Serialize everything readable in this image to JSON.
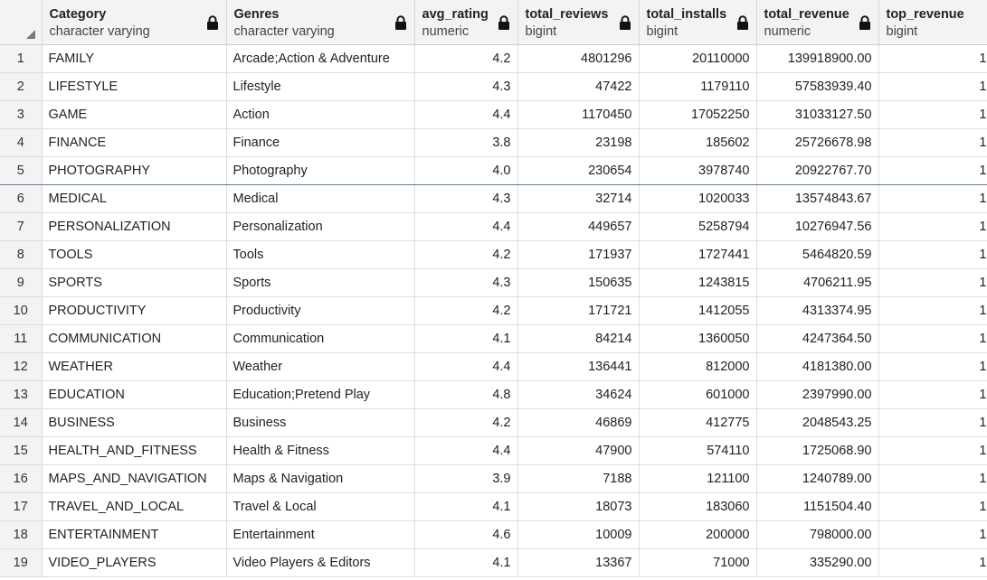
{
  "columns": [
    {
      "name": "Category",
      "type": "character varying"
    },
    {
      "name": "Genres",
      "type": "character varying"
    },
    {
      "name": "avg_rating",
      "type": "numeric"
    },
    {
      "name": "total_reviews",
      "type": "bigint"
    },
    {
      "name": "total_installs",
      "type": "bigint"
    },
    {
      "name": "total_revenue",
      "type": "numeric"
    },
    {
      "name": "top_revenue",
      "type": "bigint"
    }
  ],
  "selected_row": 5,
  "rows": [
    {
      "num": "1",
      "category": "FAMILY",
      "genres": "Arcade;Action & Adventure",
      "avg_rating": "4.2",
      "total_reviews": "4801296",
      "total_installs": "20110000",
      "total_revenue": "139918900.00",
      "top_revenue": "1"
    },
    {
      "num": "2",
      "category": "LIFESTYLE",
      "genres": "Lifestyle",
      "avg_rating": "4.3",
      "total_reviews": "47422",
      "total_installs": "1179110",
      "total_revenue": "57583939.40",
      "top_revenue": "1"
    },
    {
      "num": "3",
      "category": "GAME",
      "genres": "Action",
      "avg_rating": "4.4",
      "total_reviews": "1170450",
      "total_installs": "17052250",
      "total_revenue": "31033127.50",
      "top_revenue": "1"
    },
    {
      "num": "4",
      "category": "FINANCE",
      "genres": "Finance",
      "avg_rating": "3.8",
      "total_reviews": "23198",
      "total_installs": "185602",
      "total_revenue": "25726678.98",
      "top_revenue": "1"
    },
    {
      "num": "5",
      "category": "PHOTOGRAPHY",
      "genres": "Photography",
      "avg_rating": "4.0",
      "total_reviews": "230654",
      "total_installs": "3978740",
      "total_revenue": "20922767.70",
      "top_revenue": "1"
    },
    {
      "num": "6",
      "category": "MEDICAL",
      "genres": "Medical",
      "avg_rating": "4.3",
      "total_reviews": "32714",
      "total_installs": "1020033",
      "total_revenue": "13574843.67",
      "top_revenue": "1"
    },
    {
      "num": "7",
      "category": "PERSONALIZATION",
      "genres": "Personalization",
      "avg_rating": "4.4",
      "total_reviews": "449657",
      "total_installs": "5258794",
      "total_revenue": "10276947.56",
      "top_revenue": "1"
    },
    {
      "num": "8",
      "category": "TOOLS",
      "genres": "Tools",
      "avg_rating": "4.2",
      "total_reviews": "171937",
      "total_installs": "1727441",
      "total_revenue": "5464820.59",
      "top_revenue": "1"
    },
    {
      "num": "9",
      "category": "SPORTS",
      "genres": "Sports",
      "avg_rating": "4.3",
      "total_reviews": "150635",
      "total_installs": "1243815",
      "total_revenue": "4706211.95",
      "top_revenue": "1"
    },
    {
      "num": "10",
      "category": "PRODUCTIVITY",
      "genres": "Productivity",
      "avg_rating": "4.2",
      "total_reviews": "171721",
      "total_installs": "1412055",
      "total_revenue": "4313374.95",
      "top_revenue": "1"
    },
    {
      "num": "11",
      "category": "COMMUNICATION",
      "genres": "Communication",
      "avg_rating": "4.1",
      "total_reviews": "84214",
      "total_installs": "1360050",
      "total_revenue": "4247364.50",
      "top_revenue": "1"
    },
    {
      "num": "12",
      "category": "WEATHER",
      "genres": "Weather",
      "avg_rating": "4.4",
      "total_reviews": "136441",
      "total_installs": "812000",
      "total_revenue": "4181380.00",
      "top_revenue": "1"
    },
    {
      "num": "13",
      "category": "EDUCATION",
      "genres": "Education;Pretend Play",
      "avg_rating": "4.8",
      "total_reviews": "34624",
      "total_installs": "601000",
      "total_revenue": "2397990.00",
      "top_revenue": "1"
    },
    {
      "num": "14",
      "category": "BUSINESS",
      "genres": "Business",
      "avg_rating": "4.2",
      "total_reviews": "46869",
      "total_installs": "412775",
      "total_revenue": "2048543.25",
      "top_revenue": "1"
    },
    {
      "num": "15",
      "category": "HEALTH_AND_FITNESS",
      "genres": "Health & Fitness",
      "avg_rating": "4.4",
      "total_reviews": "47900",
      "total_installs": "574110",
      "total_revenue": "1725068.90",
      "top_revenue": "1"
    },
    {
      "num": "16",
      "category": "MAPS_AND_NAVIGATION",
      "genres": "Maps & Navigation",
      "avg_rating": "3.9",
      "total_reviews": "7188",
      "total_installs": "121100",
      "total_revenue": "1240789.00",
      "top_revenue": "1"
    },
    {
      "num": "17",
      "category": "TRAVEL_AND_LOCAL",
      "genres": "Travel & Local",
      "avg_rating": "4.1",
      "total_reviews": "18073",
      "total_installs": "183060",
      "total_revenue": "1151504.40",
      "top_revenue": "1"
    },
    {
      "num": "18",
      "category": "ENTERTAINMENT",
      "genres": "Entertainment",
      "avg_rating": "4.6",
      "total_reviews": "10009",
      "total_installs": "200000",
      "total_revenue": "798000.00",
      "top_revenue": "1"
    },
    {
      "num": "19",
      "category": "VIDEO_PLAYERS",
      "genres": "Video Players & Editors",
      "avg_rating": "4.1",
      "total_reviews": "13367",
      "total_installs": "71000",
      "total_revenue": "335290.00",
      "top_revenue": "1"
    }
  ]
}
